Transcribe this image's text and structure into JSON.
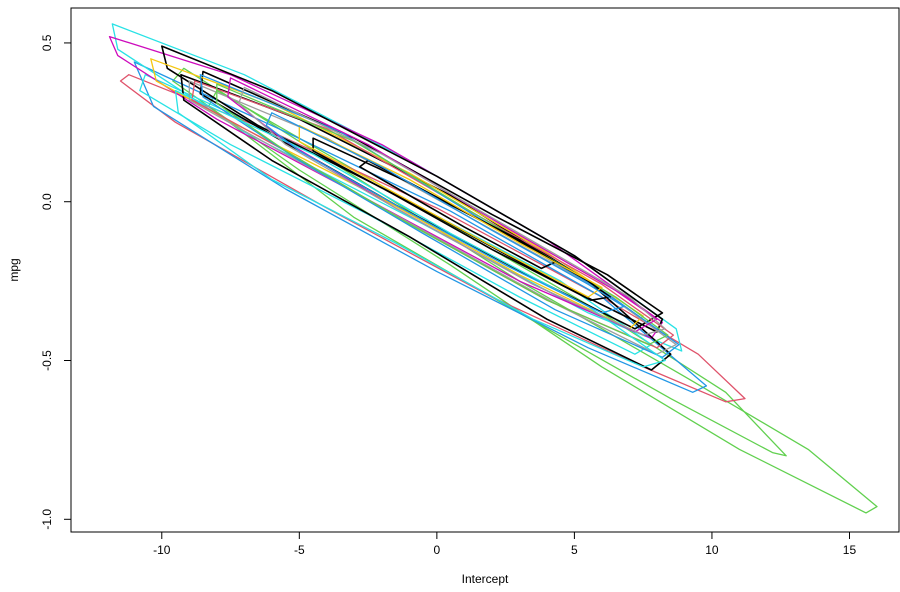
{
  "chart_data": {
    "type": "line",
    "title": "",
    "xlabel": "Intercept",
    "ylabel": "mpg",
    "xlim": [
      -13.3,
      16.8
    ],
    "ylim": [
      -1.04,
      0.61
    ],
    "x_ticks": [
      -10,
      -5,
      0,
      5,
      10,
      15
    ],
    "x_tick_labels": [
      "-10",
      "-5",
      "0",
      "5",
      "10",
      "15"
    ],
    "y_ticks": [
      0.5,
      0.0,
      -0.5,
      -1.0
    ],
    "y_tick_labels": [
      "0.5",
      "0.0",
      "-0.5",
      "-1.0"
    ],
    "grid": false,
    "legend": "none",
    "description_of_marks": "Many overlapping closed contour curves (posterior density contours) along a negative diagonal band; colors cycle through a rainbow palette with several black outlines",
    "palette": [
      "#000000",
      "#DF536B",
      "#61D04F",
      "#2297E6",
      "#28E2E5",
      "#CD0BBC",
      "#F5C710",
      "#9E9E9E"
    ],
    "series": [
      {
        "color": "#61D04F",
        "points": [
          [
            -9.2,
            0.42
          ],
          [
            -3.0,
            0.08
          ],
          [
            3.0,
            -0.25
          ],
          [
            9.0,
            -0.55
          ],
          [
            13.5,
            -0.78
          ],
          [
            16.0,
            -0.96
          ],
          [
            15.6,
            -0.98
          ],
          [
            11.0,
            -0.78
          ],
          [
            6.0,
            -0.52
          ],
          [
            0.5,
            -0.2
          ],
          [
            -5.0,
            0.1
          ],
          [
            -9.6,
            0.38
          ]
        ]
      },
      {
        "color": "#61D04F",
        "points": [
          [
            -8.0,
            0.35
          ],
          [
            0.0,
            -0.05
          ],
          [
            6.0,
            -0.35
          ],
          [
            10.5,
            -0.6
          ],
          [
            12.7,
            -0.8
          ],
          [
            12.2,
            -0.79
          ],
          [
            8.5,
            -0.62
          ],
          [
            3.0,
            -0.35
          ],
          [
            -3.0,
            -0.05
          ],
          [
            -8.3,
            0.3
          ]
        ]
      },
      {
        "color": "#DF536B",
        "points": [
          [
            -11.2,
            0.4
          ],
          [
            -6.0,
            0.22
          ],
          [
            0.0,
            -0.02
          ],
          [
            6.0,
            -0.3
          ],
          [
            9.5,
            -0.48
          ],
          [
            11.2,
            -0.62
          ],
          [
            10.5,
            -0.63
          ],
          [
            7.5,
            -0.52
          ],
          [
            2.0,
            -0.3
          ],
          [
            -4.0,
            -0.02
          ],
          [
            -9.5,
            0.25
          ],
          [
            -11.5,
            0.38
          ]
        ]
      },
      {
        "color": "#2297E6",
        "points": [
          [
            -11.0,
            0.44
          ],
          [
            -5.5,
            0.22
          ],
          [
            0.5,
            -0.03
          ],
          [
            6.0,
            -0.3
          ],
          [
            9.8,
            -0.58
          ],
          [
            9.3,
            -0.6
          ],
          [
            5.5,
            -0.46
          ],
          [
            0.0,
            -0.22
          ],
          [
            -5.5,
            0.04
          ],
          [
            -10.3,
            0.3
          ]
        ]
      },
      {
        "color": "#28E2E5",
        "points": [
          [
            -11.8,
            0.56
          ],
          [
            -7.0,
            0.4
          ],
          [
            -1.0,
            0.13
          ],
          [
            5.0,
            -0.17
          ],
          [
            8.7,
            -0.4
          ],
          [
            8.9,
            -0.47
          ],
          [
            5.5,
            -0.35
          ],
          [
            -0.5,
            -0.07
          ],
          [
            -7.0,
            0.22
          ],
          [
            -11.6,
            0.48
          ]
        ]
      },
      {
        "color": "#28E2E5",
        "points": [
          [
            -10.6,
            0.4
          ],
          [
            -6.0,
            0.22
          ],
          [
            -1.0,
            0.0
          ],
          [
            4.5,
            -0.25
          ],
          [
            7.8,
            -0.45
          ],
          [
            7.2,
            -0.48
          ],
          [
            3.0,
            -0.3
          ],
          [
            -2.5,
            -0.04
          ],
          [
            -7.5,
            0.18
          ],
          [
            -10.8,
            0.35
          ]
        ]
      },
      {
        "color": "#CD0BBC",
        "points": [
          [
            -11.9,
            0.52
          ],
          [
            -7.5,
            0.4
          ],
          [
            -2.0,
            0.18
          ],
          [
            4.0,
            -0.12
          ],
          [
            8.2,
            -0.38
          ],
          [
            7.8,
            -0.43
          ],
          [
            3.0,
            -0.25
          ],
          [
            -3.0,
            0.03
          ],
          [
            -8.0,
            0.26
          ],
          [
            -11.6,
            0.46
          ]
        ]
      },
      {
        "color": "#000000",
        "points": [
          [
            -10.0,
            0.49
          ],
          [
            -6.0,
            0.35
          ],
          [
            0.0,
            0.08
          ],
          [
            5.0,
            -0.17
          ],
          [
            8.2,
            -0.37
          ],
          [
            8.0,
            -0.41
          ],
          [
            4.5,
            -0.26
          ],
          [
            -1.0,
            0.0
          ],
          [
            -6.5,
            0.24
          ],
          [
            -9.8,
            0.42
          ]
        ]
      },
      {
        "color": "#000000",
        "points": [
          [
            -9.3,
            0.4
          ],
          [
            -5.0,
            0.26
          ],
          [
            0.5,
            0.02
          ],
          [
            5.5,
            -0.25
          ],
          [
            8.5,
            -0.48
          ],
          [
            7.8,
            -0.53
          ],
          [
            4.0,
            -0.37
          ],
          [
            -1.0,
            -0.11
          ],
          [
            -6.0,
            0.13
          ],
          [
            -9.2,
            0.32
          ]
        ]
      },
      {
        "color": "#000000",
        "points": [
          [
            -8.5,
            0.41
          ],
          [
            -3.0,
            0.2
          ],
          [
            2.0,
            -0.04
          ],
          [
            6.2,
            -0.23
          ],
          [
            8.2,
            -0.35
          ],
          [
            7.2,
            -0.4
          ],
          [
            3.5,
            -0.24
          ],
          [
            -1.5,
            -0.01
          ],
          [
            -6.0,
            0.21
          ],
          [
            -8.6,
            0.34
          ]
        ]
      },
      {
        "color": "#F5C710",
        "points": [
          [
            -10.4,
            0.45
          ],
          [
            -6.0,
            0.31
          ],
          [
            -1.0,
            0.09
          ],
          [
            4.0,
            -0.16
          ],
          [
            7.5,
            -0.36
          ],
          [
            7.0,
            -0.4
          ],
          [
            3.0,
            -0.23
          ],
          [
            -2.0,
            0.01
          ],
          [
            -7.0,
            0.23
          ],
          [
            -10.2,
            0.38
          ]
        ]
      },
      {
        "color": "#9E9E9E",
        "points": [
          [
            -9.0,
            0.38
          ],
          [
            -4.0,
            0.2
          ],
          [
            1.0,
            -0.04
          ],
          [
            6.0,
            -0.28
          ],
          [
            8.7,
            -0.45
          ],
          [
            8.0,
            -0.48
          ],
          [
            4.5,
            -0.33
          ],
          [
            -0.5,
            -0.09
          ],
          [
            -5.5,
            0.15
          ],
          [
            -9.0,
            0.32
          ]
        ]
      },
      {
        "color": "#DF536B",
        "points": [
          [
            -8.8,
            0.38
          ],
          [
            -4.0,
            0.23
          ],
          [
            1.0,
            -0.02
          ],
          [
            6.0,
            -0.26
          ],
          [
            8.6,
            -0.42
          ],
          [
            8.0,
            -0.46
          ],
          [
            4.0,
            -0.31
          ],
          [
            -1.0,
            -0.07
          ],
          [
            -5.5,
            0.16
          ],
          [
            -8.9,
            0.32
          ]
        ]
      },
      {
        "color": "#2297E6",
        "points": [
          [
            -8.6,
            0.4
          ],
          [
            -3.5,
            0.22
          ],
          [
            1.5,
            -0.05
          ],
          [
            6.2,
            -0.29
          ],
          [
            8.8,
            -0.45
          ],
          [
            8.2,
            -0.49
          ],
          [
            4.3,
            -0.34
          ],
          [
            -0.5,
            -0.1
          ],
          [
            -5.0,
            0.13
          ],
          [
            -8.5,
            0.33
          ]
        ]
      },
      {
        "color": "#61D04F",
        "points": [
          [
            -8.0,
            0.37
          ],
          [
            -3.0,
            0.19
          ],
          [
            2.0,
            -0.07
          ],
          [
            6.5,
            -0.3
          ],
          [
            8.4,
            -0.42
          ],
          [
            7.7,
            -0.45
          ],
          [
            4.0,
            -0.31
          ],
          [
            -1.0,
            -0.07
          ],
          [
            -5.5,
            0.16
          ],
          [
            -8.0,
            0.31
          ]
        ]
      },
      {
        "color": "#CD0BBC",
        "points": [
          [
            -7.5,
            0.39
          ],
          [
            -2.5,
            0.18
          ],
          [
            2.5,
            -0.08
          ],
          [
            6.5,
            -0.28
          ],
          [
            8.0,
            -0.37
          ],
          [
            7.2,
            -0.41
          ],
          [
            3.5,
            -0.26
          ],
          [
            -1.5,
            -0.02
          ],
          [
            -5.5,
            0.19
          ],
          [
            -7.6,
            0.33
          ]
        ]
      },
      {
        "color": "#28E2E5",
        "points": [
          [
            -9.5,
            0.35
          ],
          [
            -4.5,
            0.15
          ],
          [
            0.5,
            -0.1
          ],
          [
            5.5,
            -0.33
          ],
          [
            8.3,
            -0.5
          ],
          [
            7.5,
            -0.52
          ],
          [
            3.5,
            -0.37
          ],
          [
            -1.5,
            -0.13
          ],
          [
            -6.0,
            0.07
          ],
          [
            -9.4,
            0.28
          ]
        ]
      },
      {
        "color": "#9E9E9E",
        "points": [
          [
            -7.0,
            0.36
          ],
          [
            -2.0,
            0.15
          ],
          [
            3.0,
            -0.1
          ],
          [
            7.0,
            -0.3
          ],
          [
            8.3,
            -0.4
          ],
          [
            7.5,
            -0.42
          ],
          [
            3.5,
            -0.26
          ],
          [
            -1.5,
            -0.02
          ],
          [
            -5.5,
            0.18
          ],
          [
            -7.2,
            0.31
          ]
        ]
      },
      {
        "color": "#000000",
        "points": [
          [
            -4.5,
            0.2
          ],
          [
            -1.0,
            0.06
          ],
          [
            2.5,
            -0.1
          ],
          [
            5.5,
            -0.25
          ],
          [
            6.3,
            -0.3
          ],
          [
            5.6,
            -0.31
          ],
          [
            2.0,
            -0.15
          ],
          [
            -1.5,
            0.02
          ],
          [
            -4.5,
            0.16
          ]
        ]
      },
      {
        "color": "#000000",
        "points": [
          [
            -2.5,
            0.13
          ],
          [
            0.5,
            -0.01
          ],
          [
            3.0,
            -0.12
          ],
          [
            4.3,
            -0.19
          ],
          [
            3.8,
            -0.21
          ],
          [
            1.0,
            -0.08
          ],
          [
            -2.0,
            0.07
          ],
          [
            -2.8,
            0.11
          ]
        ]
      },
      {
        "color": "#F5C710",
        "points": [
          [
            -5.0,
            0.24
          ],
          [
            -1.0,
            0.07
          ],
          [
            3.0,
            -0.13
          ],
          [
            6.0,
            -0.27
          ],
          [
            5.5,
            -0.3
          ],
          [
            2.0,
            -0.14
          ],
          [
            -2.0,
            0.05
          ],
          [
            -5.0,
            0.19
          ]
        ]
      },
      {
        "color": "#2297E6",
        "points": [
          [
            -6.0,
            0.28
          ],
          [
            -2.0,
            0.11
          ],
          [
            2.0,
            -0.09
          ],
          [
            5.5,
            -0.26
          ],
          [
            6.8,
            -0.33
          ],
          [
            6.0,
            -0.35
          ],
          [
            2.5,
            -0.2
          ],
          [
            -1.5,
            -0.01
          ],
          [
            -5.0,
            0.16
          ],
          [
            -6.2,
            0.24
          ]
        ]
      }
    ]
  }
}
